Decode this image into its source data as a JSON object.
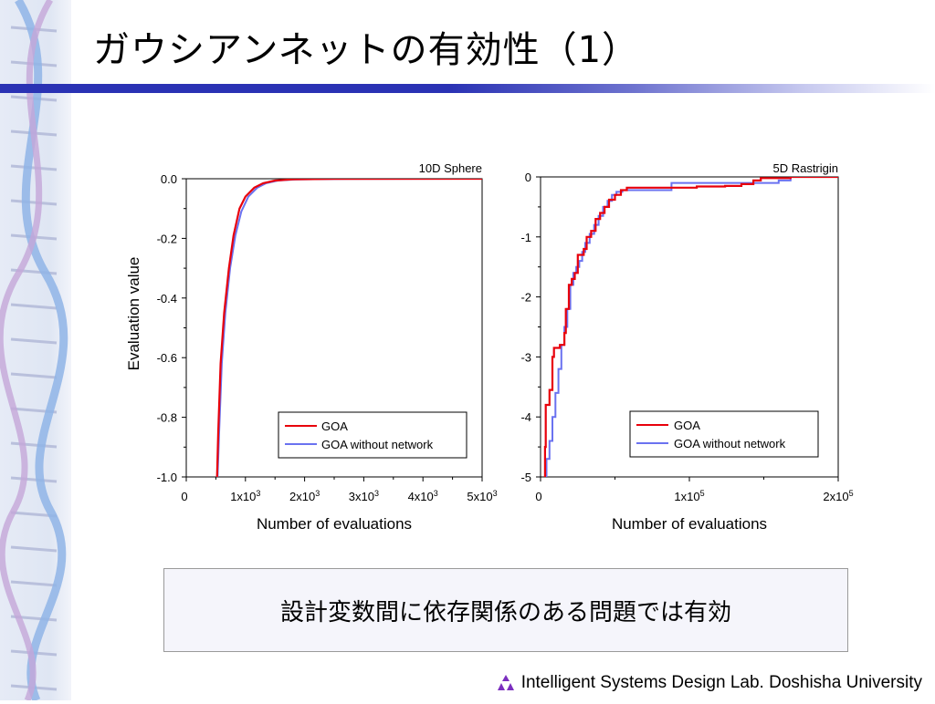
{
  "slide": {
    "title": "ガウシアンネットの有効性（1）",
    "message": "設計変数間に依存関係のある問題では有効",
    "footer": "Intelligent Systems Design Lab. Doshisha University"
  },
  "colors": {
    "goa": "#e8000b",
    "goa_without_network": "#6a72f0",
    "title_bar": "#2a32b4",
    "footer_logo": "#7b2fbf"
  },
  "icons": [
    "dna-helix-icon",
    "triangle-logo-icon"
  ],
  "chart_data": [
    {
      "type": "line",
      "title": "10D Sphere",
      "xlabel": "Number of evaluations",
      "ylabel": "Evaluation value",
      "xlim": [
        0,
        5000
      ],
      "ylim": [
        -1.0,
        0.0
      ],
      "x_ticks": [
        {
          "v": 0,
          "base": "0",
          "exp": ""
        },
        {
          "v": 1000,
          "base": "1x10",
          "exp": "3"
        },
        {
          "v": 2000,
          "base": "2x10",
          "exp": "3"
        },
        {
          "v": 3000,
          "base": "3x10",
          "exp": "3"
        },
        {
          "v": 4000,
          "base": "4x10",
          "exp": "3"
        },
        {
          "v": 5000,
          "base": "5x10",
          "exp": "3"
        }
      ],
      "y_ticks": [
        {
          "v": 0.0,
          "label": "0.0"
        },
        {
          "v": -0.2,
          "label": "-0.2"
        },
        {
          "v": -0.4,
          "label": "-0.4"
        },
        {
          "v": -0.6,
          "label": "-0.6"
        },
        {
          "v": -0.8,
          "label": "-0.8"
        },
        {
          "v": -1.0,
          "label": "-1.0"
        }
      ],
      "legend_position": "bottom-right",
      "grid": false,
      "series": [
        {
          "name": "GOA",
          "color": "#e8000b",
          "step": false,
          "points": [
            [
              520,
              -1.0
            ],
            [
              540,
              -0.85
            ],
            [
              580,
              -0.62
            ],
            [
              640,
              -0.45
            ],
            [
              720,
              -0.3
            ],
            [
              800,
              -0.19
            ],
            [
              900,
              -0.1
            ],
            [
              1000,
              -0.06
            ],
            [
              1150,
              -0.03
            ],
            [
              1300,
              -0.015
            ],
            [
              1500,
              -0.006
            ],
            [
              1800,
              -0.002
            ],
            [
              2500,
              -0.0005
            ],
            [
              5000,
              0.0
            ]
          ]
        },
        {
          "name": "GOA without network",
          "color": "#6a72f0",
          "step": false,
          "points": [
            [
              530,
              -1.0
            ],
            [
              555,
              -0.85
            ],
            [
              600,
              -0.62
            ],
            [
              660,
              -0.45
            ],
            [
              740,
              -0.3
            ],
            [
              830,
              -0.19
            ],
            [
              930,
              -0.11
            ],
            [
              1050,
              -0.06
            ],
            [
              1200,
              -0.03
            ],
            [
              1350,
              -0.015
            ],
            [
              1550,
              -0.006
            ],
            [
              1850,
              -0.002
            ],
            [
              2500,
              -0.0005
            ],
            [
              5000,
              0.0
            ]
          ]
        }
      ]
    },
    {
      "type": "line",
      "title": "5D Rastrigin",
      "xlabel": "Number of evaluations",
      "ylabel": "",
      "xlim": [
        0,
        200000
      ],
      "ylim": [
        -5,
        0
      ],
      "x_ticks": [
        {
          "v": 0,
          "base": "0",
          "exp": ""
        },
        {
          "v": 100000,
          "base": "1x10",
          "exp": "5"
        },
        {
          "v": 200000,
          "base": "2x10",
          "exp": "5"
        }
      ],
      "y_ticks": [
        {
          "v": 0,
          "label": "0"
        },
        {
          "v": -1,
          "label": "-1"
        },
        {
          "v": -2,
          "label": "-2"
        },
        {
          "v": -3,
          "label": "-3"
        },
        {
          "v": -4,
          "label": "-4"
        },
        {
          "v": -5,
          "label": "-5"
        }
      ],
      "legend_position": "bottom-right",
      "grid": false,
      "series": [
        {
          "name": "GOA",
          "color": "#e8000b",
          "step": true,
          "points": [
            [
              2500,
              -5.0
            ],
            [
              3000,
              -4.5
            ],
            [
              3500,
              -3.8
            ],
            [
              6000,
              -3.55
            ],
            [
              8000,
              -3.0
            ],
            [
              9000,
              -2.85
            ],
            [
              13000,
              -2.8
            ],
            [
              16000,
              -2.6
            ],
            [
              17000,
              -2.2
            ],
            [
              19000,
              -1.8
            ],
            [
              21000,
              -1.7
            ],
            [
              23000,
              -1.6
            ],
            [
              25000,
              -1.3
            ],
            [
              29000,
              -1.2
            ],
            [
              31000,
              -1.0
            ],
            [
              34000,
              -0.9
            ],
            [
              37000,
              -0.7
            ],
            [
              40000,
              -0.6
            ],
            [
              43000,
              -0.5
            ],
            [
              46000,
              -0.38
            ],
            [
              50000,
              -0.3
            ],
            [
              54000,
              -0.22
            ],
            [
              58000,
              -0.18
            ],
            [
              90000,
              -0.18
            ],
            [
              105000,
              -0.16
            ],
            [
              124000,
              -0.15
            ],
            [
              135000,
              -0.12
            ],
            [
              143000,
              -0.06
            ],
            [
              148000,
              -0.02
            ],
            [
              155000,
              -0.02
            ],
            [
              168000,
              0.0
            ],
            [
              200000,
              0.0
            ]
          ]
        },
        {
          "name": "GOA without network",
          "color": "#6a72f0",
          "step": true,
          "points": [
            [
              3000,
              -5.0
            ],
            [
              4000,
              -4.7
            ],
            [
              6000,
              -4.4
            ],
            [
              8000,
              -4.0
            ],
            [
              10000,
              -3.6
            ],
            [
              12000,
              -3.2
            ],
            [
              14000,
              -2.8
            ],
            [
              16000,
              -2.5
            ],
            [
              18000,
              -2.2
            ],
            [
              20000,
              -1.8
            ],
            [
              22000,
              -1.6
            ],
            [
              24000,
              -1.5
            ],
            [
              26000,
              -1.4
            ],
            [
              28000,
              -1.25
            ],
            [
              30000,
              -1.1
            ],
            [
              33000,
              -0.95
            ],
            [
              36000,
              -0.8
            ],
            [
              39000,
              -0.65
            ],
            [
              42000,
              -0.5
            ],
            [
              45000,
              -0.4
            ],
            [
              48000,
              -0.3
            ],
            [
              51000,
              -0.25
            ],
            [
              55000,
              -0.22
            ],
            [
              88000,
              -0.1
            ],
            [
              130000,
              -0.1
            ],
            [
              160000,
              -0.06
            ],
            [
              168000,
              0.0
            ],
            [
              200000,
              0.0
            ]
          ]
        }
      ]
    }
  ]
}
